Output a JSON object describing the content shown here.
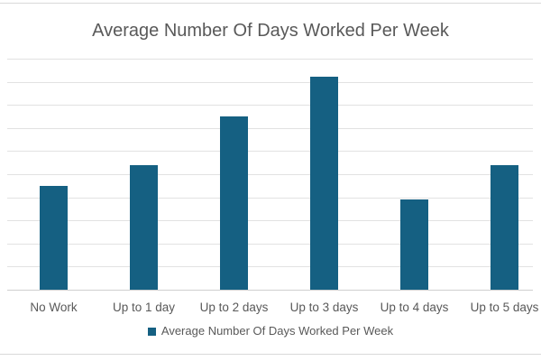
{
  "chart_data": {
    "type": "bar",
    "title": "Average Number Of Days Worked Per Week",
    "categories": [
      "No Work",
      "Up to 1 day",
      "Up to 2 days",
      "Up to 3 days",
      "Up to 4 days",
      "Up to 5 days"
    ],
    "values": [
      4.5,
      5.4,
      7.5,
      9.2,
      3.9,
      5.4
    ],
    "xlabel": "",
    "ylabel": "",
    "ylim": [
      0,
      10
    ],
    "gridline_step": 1,
    "grid": true,
    "y_tick_labels_visible": false,
    "legend": {
      "position": "bottom",
      "entries": [
        "Average Number Of Days Worked Per Week"
      ]
    },
    "bar_color": "#156082"
  },
  "colors": {
    "bar": "#156082",
    "text": "#595959",
    "gridline": "#e2e2e2",
    "axis_line": "#cfcfcf",
    "chart_border": "#d9d9d9"
  }
}
